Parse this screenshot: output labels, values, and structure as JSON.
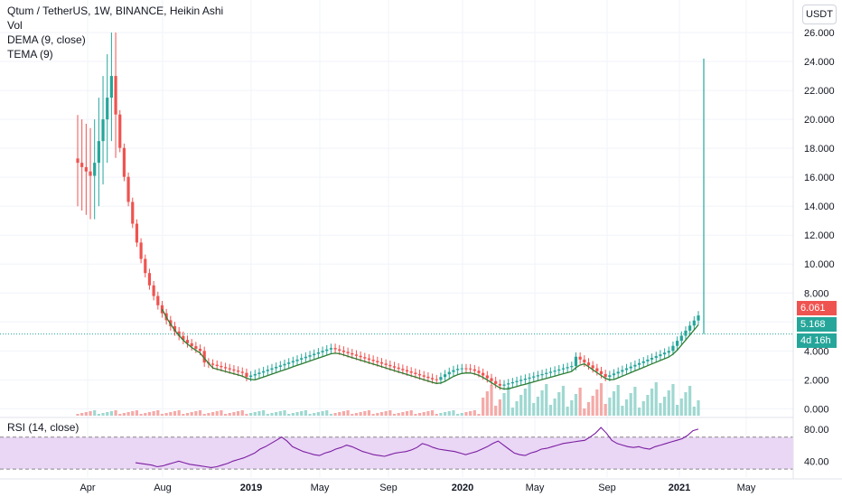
{
  "legend": {
    "title": "Qtum / TetherUS, 1W, BINANCE, Heikin Ashi",
    "vol": "Vol",
    "dema": "DEMA (9, close)",
    "tema": "TEMA (9)"
  },
  "currency_button": "USDT",
  "rsi_label": "RSI (14, close)",
  "price_tags": {
    "last_price": "6.061",
    "current_price": "5.168",
    "countdown": "4d 16h"
  },
  "colors": {
    "up": "#26a69a",
    "down": "#ef5350",
    "dema": "#2e7d32",
    "rsi_line": "#7b1fa2",
    "rsi_band": "#ead6f5",
    "grid": "#f0f3fa"
  },
  "chart_data": {
    "type": "candlestick",
    "price_axis": {
      "ticks": [
        0,
        2,
        4,
        6,
        8,
        10,
        12,
        14,
        16,
        18,
        20,
        22,
        24,
        26
      ],
      "tick_labels": [
        "0.000",
        "2.000",
        "4.000",
        "6.000",
        "8.000",
        "10.000",
        "12.000",
        "14.000",
        "16.000",
        "18.000",
        "20.000",
        "22.000",
        "24.000",
        "26.000"
      ],
      "range": [
        -0.6,
        27
      ]
    },
    "time_axis": {
      "labels": [
        "Apr",
        "Aug",
        "2019",
        "May",
        "Sep",
        "2020",
        "May",
        "Sep",
        "2021",
        "May"
      ],
      "bold": [
        false,
        false,
        true,
        false,
        false,
        true,
        false,
        false,
        true,
        false
      ]
    },
    "rsi": {
      "ticks": [
        "80.00",
        "40.00"
      ],
      "band": [
        30,
        70
      ],
      "values": [
        38,
        37,
        36,
        35,
        33,
        34,
        36,
        38,
        40,
        38,
        36,
        35,
        34,
        33,
        32,
        33,
        35,
        37,
        40,
        42,
        44,
        47,
        50,
        55,
        58,
        62,
        66,
        70,
        65,
        58,
        55,
        52,
        50,
        48,
        47,
        50,
        52,
        55,
        57,
        60,
        58,
        55,
        52,
        50,
        48,
        47,
        46,
        48,
        50,
        51,
        52,
        54,
        57,
        62,
        60,
        57,
        55,
        54,
        53,
        52,
        50,
        48,
        50,
        52,
        55,
        58,
        62,
        65,
        60,
        55,
        50,
        48,
        47,
        50,
        52,
        55,
        56,
        58,
        60,
        62,
        63,
        64,
        65,
        66,
        70,
        75,
        82,
        75,
        66,
        62,
        60,
        58,
        57,
        58,
        56,
        55,
        58,
        60,
        62,
        64,
        66,
        68,
        72,
        78,
        80
      ]
    }
  }
}
